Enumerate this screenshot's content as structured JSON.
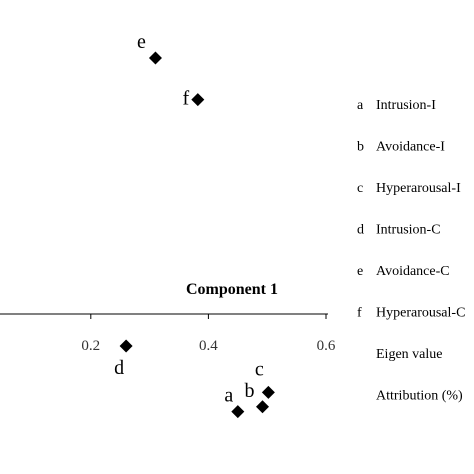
{
  "chart_data": {
    "type": "scatter",
    "xlabel": "Component  1",
    "ylabel": "",
    "xlim": [
      -0.05,
      0.6
    ],
    "ylim": [
      -0.45,
      0.95
    ],
    "x_ticks": [
      0.2,
      0.4,
      0.6
    ],
    "x_tick_labels": [
      "0.2",
      "0.4",
      "0.6"
    ],
    "grid": false,
    "legend_position": "right",
    "marker": "diamond",
    "marker_color": "#000000",
    "points": [
      {
        "label": "a",
        "x": 0.45,
        "y": -0.305
      },
      {
        "label": "b",
        "x": 0.492,
        "y": -0.29
      },
      {
        "label": "c",
        "x": 0.502,
        "y": -0.245
      },
      {
        "label": "d",
        "x": 0.26,
        "y": -0.1
      },
      {
        "label": "e",
        "x": 0.31,
        "y": 0.8
      },
      {
        "label": "f",
        "x": 0.382,
        "y": 0.67
      }
    ],
    "legend": [
      {
        "key": "a",
        "text": "Intrusion-I"
      },
      {
        "key": "b",
        "text": "Avoidance-I"
      },
      {
        "key": "c",
        "text": "Hyperarousal-I"
      },
      {
        "key": "d",
        "text": "Intrusion-C"
      },
      {
        "key": "e",
        "text": "Avoidance-C"
      },
      {
        "key": "f",
        "text": "Hyperarousal-C"
      },
      {
        "key": "",
        "text": "Eigen value"
      },
      {
        "key": "",
        "text": "Attribution (%)"
      }
    ]
  }
}
